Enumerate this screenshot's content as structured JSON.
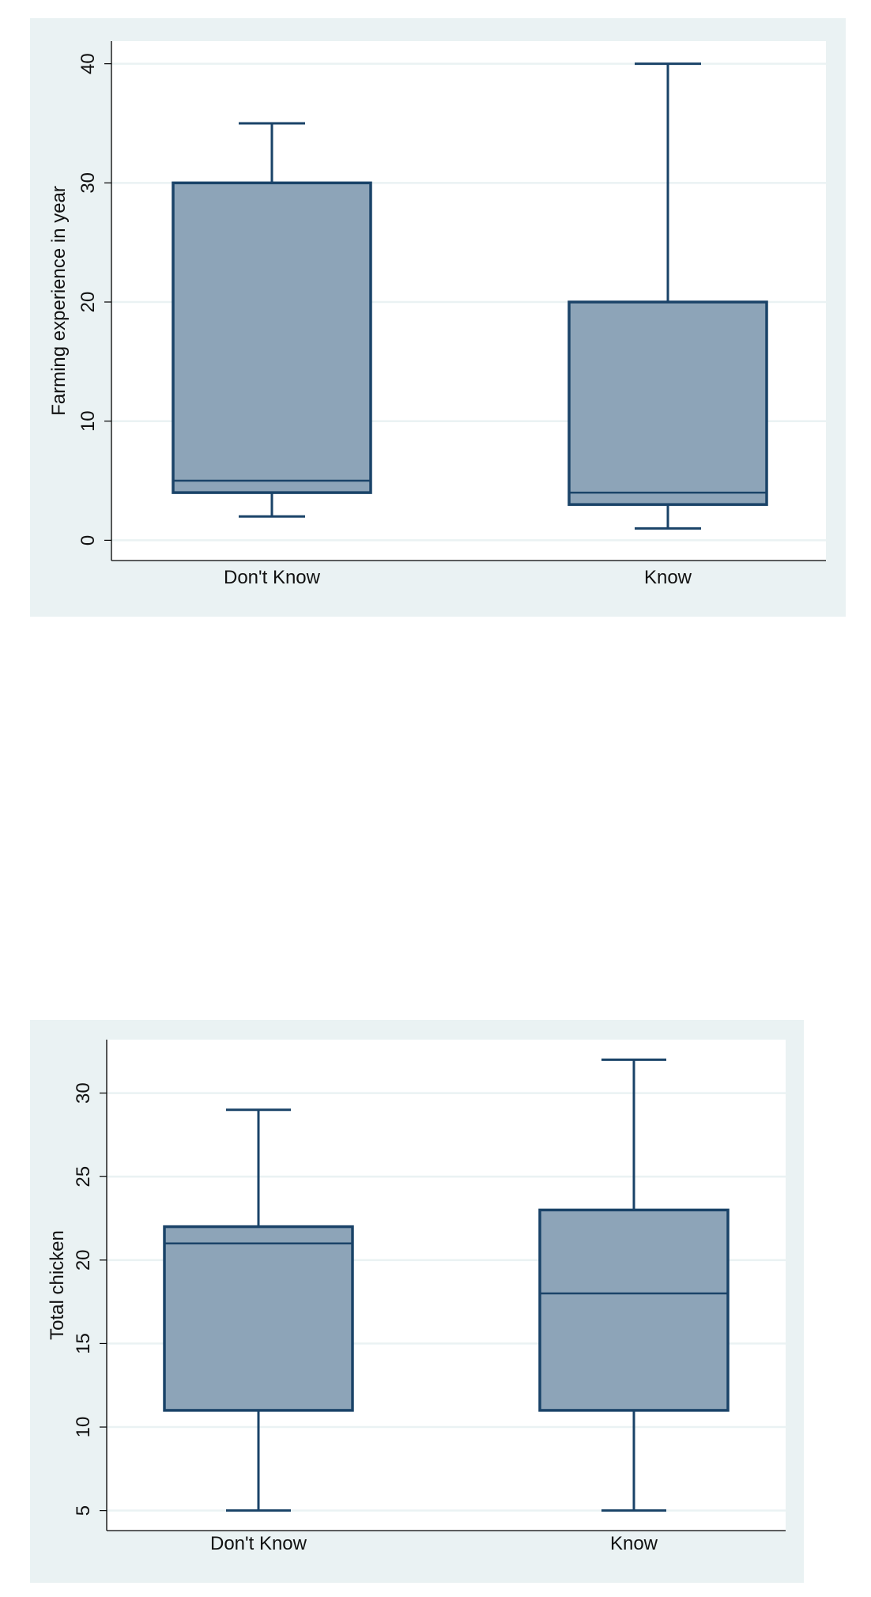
{
  "colors": {
    "panel_bg": "#EAF2F3",
    "plot_bg": "#FFFFFF",
    "grid": "#EAF2F3",
    "box_fill": "#8DA4B8",
    "box_stroke": "#1A4368",
    "axis": "#000000"
  },
  "chart_data": [
    {
      "type": "box",
      "categories": [
        "Don't Know",
        "Know"
      ],
      "ylabel": "Farming experience in year",
      "xlabel": "",
      "ylim": [
        -1.7,
        41.9
      ],
      "yticks": [
        0,
        10,
        20,
        30,
        40
      ],
      "grid": true,
      "boxes": [
        {
          "category": "Don't Know",
          "whisker_low": 2,
          "q1": 4,
          "median": 5,
          "q3": 30,
          "whisker_high": 35
        },
        {
          "category": "Know",
          "whisker_low": 1,
          "q1": 3,
          "median": 4,
          "q3": 20,
          "whisker_high": 40
        }
      ]
    },
    {
      "type": "box",
      "categories": [
        "Don't Know",
        "Know"
      ],
      "ylabel": "Total chicken",
      "xlabel": "",
      "ylim": [
        3.8,
        33.2
      ],
      "yticks": [
        5,
        10,
        15,
        20,
        25,
        30
      ],
      "grid": true,
      "boxes": [
        {
          "category": "Don't Know",
          "whisker_low": 5,
          "q1": 11,
          "median": 21,
          "q3": 22,
          "whisker_high": 29
        },
        {
          "category": "Know",
          "whisker_low": 5,
          "q1": 11,
          "median": 18,
          "q3": 23,
          "whisker_high": 32
        }
      ]
    }
  ]
}
